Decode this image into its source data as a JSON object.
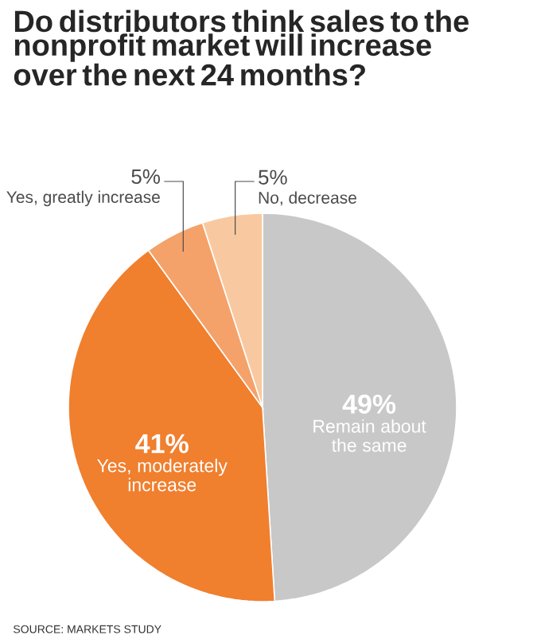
{
  "chart_data": {
    "type": "pie",
    "title": "Do distributors think sales to the nonprofit market will increase over the next 24 months?",
    "categories": [
      "Remain about the same",
      "Yes, moderately increase",
      "Yes, greatly increase",
      "No, decrease"
    ],
    "values": [
      49,
      41,
      5,
      5
    ],
    "value_labels": [
      "49%",
      "41%",
      "5%",
      "5%"
    ],
    "colors": [
      "#c8c8c8",
      "#f07f2e",
      "#f4a26a",
      "#f8c9a0"
    ],
    "annotations": [
      "SOURCE: MARKETS STUDY"
    ]
  }
}
